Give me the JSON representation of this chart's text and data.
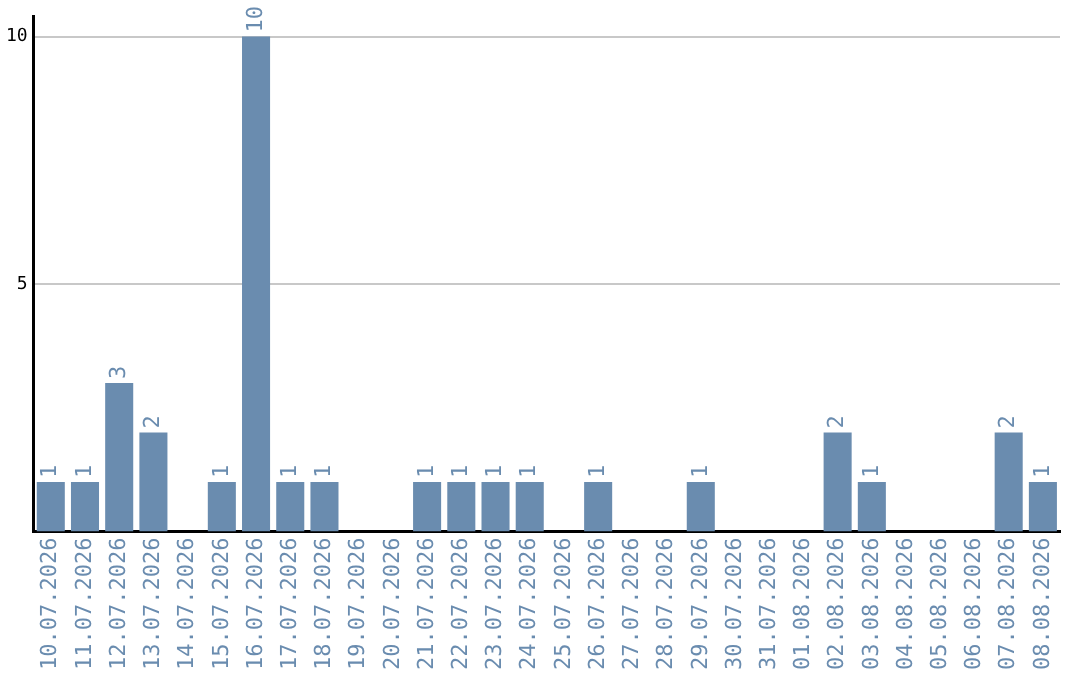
{
  "chart_data": {
    "type": "bar",
    "categories": [
      "10.07.2026",
      "11.07.2026",
      "12.07.2026",
      "13.07.2026",
      "14.07.2026",
      "15.07.2026",
      "16.07.2026",
      "17.07.2026",
      "18.07.2026",
      "19.07.2026",
      "20.07.2026",
      "21.07.2026",
      "22.07.2026",
      "23.07.2026",
      "24.07.2026",
      "25.07.2026",
      "26.07.2026",
      "27.07.2026",
      "28.07.2026",
      "29.07.2026",
      "30.07.2026",
      "31.07.2026",
      "01.08.2026",
      "02.08.2026",
      "03.08.2026",
      "04.08.2026",
      "05.08.2026",
      "06.08.2026",
      "07.08.2026",
      "08.08.2026"
    ],
    "values": [
      1,
      1,
      3,
      2,
      0,
      1,
      10,
      1,
      1,
      0,
      0,
      1,
      1,
      1,
      1,
      0,
      1,
      0,
      0,
      1,
      0,
      0,
      0,
      2,
      1,
      0,
      0,
      0,
      2,
      1
    ],
    "value_labels": [
      "1",
      "1",
      "3",
      "2",
      null,
      "1",
      "10",
      "1",
      "1",
      null,
      null,
      "1",
      "1",
      "1",
      "1",
      null,
      "1",
      null,
      null,
      "1",
      null,
      null,
      null,
      "2",
      "1",
      null,
      null,
      null,
      "2",
      "1"
    ],
    "color": "#6a8caf",
    "ylim": [
      0,
      10.4
    ],
    "yticks": [
      5,
      10
    ],
    "grid": "y"
  }
}
